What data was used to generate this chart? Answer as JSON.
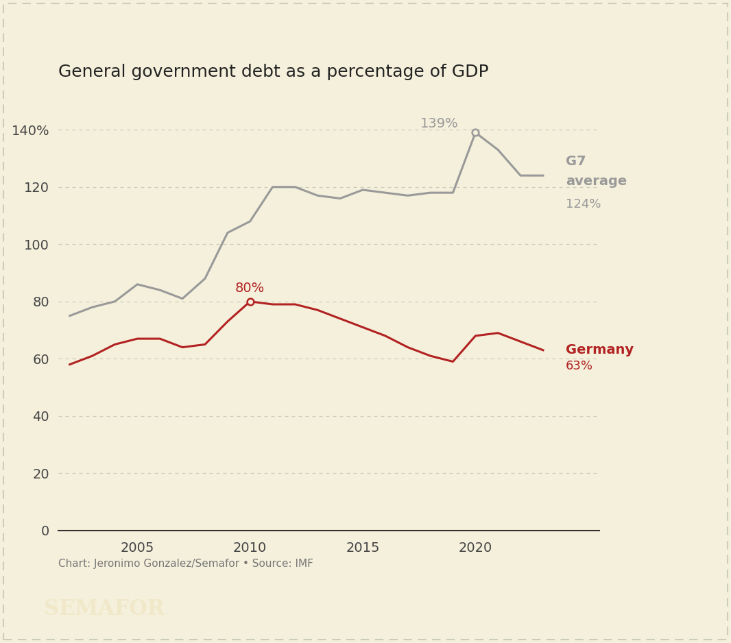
{
  "title": "General government debt as a percentage of GDP",
  "background_color": "#f5f0dc",
  "footer_bg": "#000000",
  "footer_text": "SEMAFOR",
  "source_text": "Chart: Jeronimo Gonzalez/Semafor • Source: IMF",
  "germany_years": [
    2002,
    2003,
    2004,
    2005,
    2006,
    2007,
    2008,
    2009,
    2010,
    2011,
    2012,
    2013,
    2014,
    2015,
    2016,
    2017,
    2018,
    2019,
    2020,
    2021,
    2022,
    2023
  ],
  "germany_values": [
    58,
    61,
    65,
    67,
    67,
    64,
    65,
    73,
    80,
    79,
    79,
    77,
    74,
    71,
    68,
    64,
    61,
    59,
    68,
    69,
    66,
    63
  ],
  "g7_years": [
    2002,
    2003,
    2004,
    2005,
    2006,
    2007,
    2008,
    2009,
    2010,
    2011,
    2012,
    2013,
    2014,
    2015,
    2016,
    2017,
    2018,
    2019,
    2020,
    2021,
    2022,
    2023
  ],
  "g7_values": [
    75,
    78,
    80,
    86,
    84,
    81,
    88,
    104,
    108,
    120,
    120,
    117,
    116,
    119,
    118,
    117,
    118,
    118,
    139,
    133,
    124,
    124
  ],
  "germany_color": "#b22222",
  "g7_color": "#999999",
  "germany_peak_year": 2010,
  "germany_peak_value": 80,
  "g7_peak_year": 2020,
  "g7_peak_value": 139,
  "yticks": [
    0,
    20,
    40,
    60,
    80,
    100,
    120,
    140
  ],
  "ylim": [
    0,
    155
  ],
  "xlim": [
    2001.5,
    2025.5
  ],
  "xtick_years": [
    2005,
    2010,
    2015,
    2020
  ],
  "grid_color": "#ccccbb",
  "line_width": 2.2,
  "title_fontsize": 18,
  "tick_fontsize": 14,
  "label_fontsize": 14,
  "source_fontsize": 11,
  "footer_fontsize": 22
}
